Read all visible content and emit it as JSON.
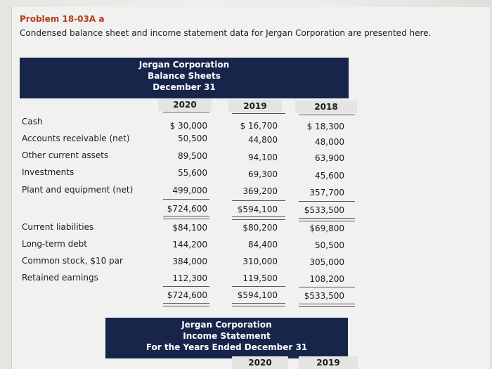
{
  "problem": {
    "title": "Problem 18-03A a",
    "intro": "Condensed balance sheet and income statement data for Jergan Corporation are presented here."
  },
  "balance_sheet": {
    "header": [
      "Jergan Corporation",
      "Balance Sheets",
      "December 31"
    ],
    "years": [
      "2020",
      "2019",
      "2018"
    ],
    "assets": [
      {
        "label": "Cash",
        "values": [
          "$ 30,000",
          "$ 16,700",
          "$ 18,300"
        ]
      },
      {
        "label": "Accounts receivable (net)",
        "values": [
          "50,500",
          "44,800",
          "48,000"
        ]
      },
      {
        "label": "Other current assets",
        "values": [
          "89,500",
          "94,100",
          "63,900"
        ]
      },
      {
        "label": "Investments",
        "values": [
          "55,600",
          "69,300",
          "45,600"
        ]
      },
      {
        "label": "Plant and equipment (net)",
        "values": [
          "499,000",
          "369,200",
          "357,700"
        ]
      }
    ],
    "total_assets": [
      "$724,600",
      "$594,100",
      "$533,500"
    ],
    "liabilities_equity": [
      {
        "label": "Current liabilities",
        "values": [
          "$84,100",
          "$80,200",
          "$69,800"
        ]
      },
      {
        "label": "Long-term debt",
        "values": [
          "144,200",
          "84,400",
          "50,500"
        ]
      },
      {
        "label": "Common stock, $10 par",
        "values": [
          "384,000",
          "310,000",
          "305,000"
        ]
      },
      {
        "label": "Retained earnings",
        "values": [
          "112,300",
          "119,500",
          "108,200"
        ]
      }
    ],
    "total_liabilities_equity": [
      "$724,600",
      "$594,100",
      "$533,500"
    ]
  },
  "income_statement": {
    "header": [
      "Jergan Corporation",
      "Income Statement",
      "For the Years Ended December 31"
    ],
    "years": [
      "2020",
      "2019"
    ]
  }
}
